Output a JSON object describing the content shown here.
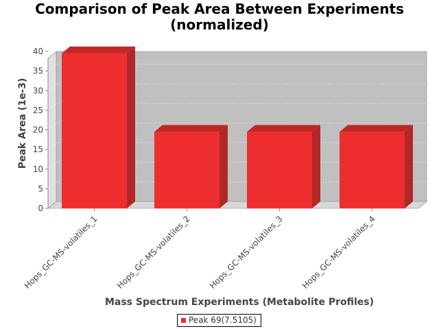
{
  "chart_data": {
    "type": "bar",
    "title": "Comparison of Peak Area Between Experiments",
    "subtitle": "(normalized)",
    "xlabel": "Mass Spectrum Experiments (Metabolite Profiles)",
    "ylabel": "Peak Area (1e-3)",
    "categories": [
      "Hops_GC-MS-volatiles_1",
      "Hops_GC-MS-volatiles_2",
      "Hops_GC-MS-volatiles_3",
      "Hops_GC-MS-volatiles_4"
    ],
    "series": [
      {
        "name": "Peak 69(7.5105)",
        "values": [
          39.5,
          19.5,
          19.5,
          19.5
        ],
        "color": "#ee2e2e"
      }
    ],
    "ylim": [
      0,
      40
    ],
    "yticks": [
      "0",
      "5",
      "10",
      "15",
      "20",
      "25",
      "30",
      "35",
      "40"
    ],
    "grid": true,
    "legend_position": "bottom",
    "style": "3d",
    "plot_background": "#c0c0c0"
  }
}
